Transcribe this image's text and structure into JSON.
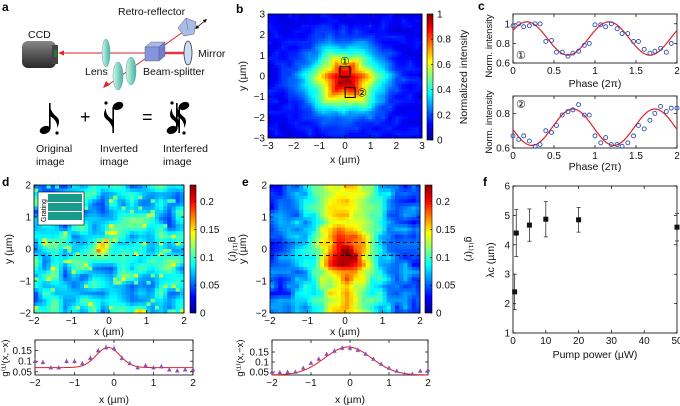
{
  "panel_labels": {
    "a": "a",
    "b": "b",
    "c": "c",
    "d": "d",
    "e": "e",
    "f": "f"
  },
  "panel_a": {
    "ccd": "CCD",
    "retro_reflector": "Retro-reflector",
    "mirror": "Mirror",
    "lens": "Lens",
    "beam_splitter": "Beam-splitter",
    "plus": "+",
    "equals": "=",
    "original": [
      "Original",
      "image"
    ],
    "inverted": [
      "Inverted",
      "image"
    ],
    "interfered": [
      "Interfered",
      "image"
    ],
    "colors": {
      "beam": "#e0202a",
      "lens": "#7fd0c0",
      "splitter": "#7f8fd8",
      "ccd": "#555555"
    }
  },
  "chart_data": [
    {
      "id": "b",
      "type": "heatmap",
      "xlabel": "x (µm)",
      "ylabel": "y (µm)",
      "xlim": [
        -3,
        3
      ],
      "ylim": [
        -3,
        3
      ],
      "xticks": [
        -3,
        -2,
        -1,
        0,
        1,
        2,
        3
      ],
      "yticks": [
        -3,
        -2,
        -1,
        0,
        1,
        2,
        3
      ],
      "colorbar": {
        "label": "Normalized intensity",
        "range": [
          0,
          1
        ],
        "ticks": [
          0,
          0.2,
          0.4,
          0.6,
          0.8,
          1
        ],
        "colormap": "jet"
      },
      "markers": [
        {
          "label": "①",
          "x": 0,
          "y": 0.2
        },
        {
          "label": "②",
          "x": 0.2,
          "y": -0.8
        }
      ]
    },
    {
      "id": "c1",
      "type": "scatter",
      "xlabel": "Phase (2π)",
      "ylabel": "Norm. intensity",
      "tag": "①",
      "xlim": [
        0,
        2
      ],
      "ylim": [
        0.6,
        1.1
      ],
      "xticks": [
        0,
        0.5,
        1,
        1.5,
        2
      ],
      "yticks": [
        0.6,
        0.8,
        1
      ],
      "x": [
        0,
        0.07,
        0.13,
        0.2,
        0.27,
        0.33,
        0.4,
        0.47,
        0.53,
        0.6,
        0.67,
        0.73,
        0.8,
        0.87,
        0.93,
        1.0,
        1.07,
        1.13,
        1.2,
        1.27,
        1.33,
        1.4,
        1.47,
        1.53,
        1.6,
        1.67,
        1.73,
        1.8,
        1.87,
        1.93
      ],
      "y": [
        0.98,
        1.0,
        0.97,
        0.98,
        1.0,
        1.0,
        0.82,
        0.83,
        0.71,
        0.71,
        0.67,
        0.7,
        0.72,
        0.78,
        0.8,
        0.99,
        0.99,
        0.97,
        1.0,
        0.95,
        0.9,
        0.9,
        0.82,
        0.82,
        0.74,
        0.7,
        0.72,
        0.75,
        0.71,
        0.8
      ],
      "fit": {
        "type": "cosine",
        "offset": 0.85,
        "amplitude": 0.17,
        "phase": 0.17
      },
      "colors": {
        "points": "#3050b0",
        "fit": "#e0202a"
      }
    },
    {
      "id": "c2",
      "type": "scatter",
      "xlabel": "Phase (2π)",
      "ylabel": "Norm. intensity",
      "tag": "②",
      "xlim": [
        0,
        2
      ],
      "ylim": [
        0.6,
        0.9
      ],
      "xticks": [
        0,
        0.5,
        1,
        1.5,
        2
      ],
      "yticks": [
        0.6,
        0.8
      ],
      "x": [
        0,
        0.07,
        0.13,
        0.2,
        0.27,
        0.33,
        0.4,
        0.47,
        0.53,
        0.6,
        0.67,
        0.73,
        0.8,
        0.87,
        0.93,
        1.0,
        1.07,
        1.13,
        1.2,
        1.27,
        1.33,
        1.4,
        1.47,
        1.53,
        1.6,
        1.67,
        1.73,
        1.8,
        1.87,
        1.93,
        2.0
      ],
      "y": [
        0.67,
        0.65,
        0.67,
        0.64,
        0.61,
        0.62,
        0.7,
        0.69,
        0.73,
        0.79,
        0.81,
        0.82,
        0.85,
        0.79,
        0.79,
        0.67,
        0.63,
        0.66,
        0.62,
        0.62,
        0.61,
        0.63,
        0.67,
        0.73,
        0.71,
        0.76,
        0.8,
        0.84,
        0.81,
        0.83,
        0.83
      ],
      "fit": {
        "type": "cosine",
        "offset": 0.72,
        "amplitude": 0.105,
        "phase": 0.73
      },
      "colors": {
        "points": "#3050b0",
        "fit": "#e0202a"
      }
    },
    {
      "id": "d",
      "type": "heatmap",
      "xlabel": "x (µm)",
      "ylabel": "y (µm)",
      "xlim": [
        -2,
        2
      ],
      "ylim": [
        -2,
        2
      ],
      "xticks": [
        -2,
        -1,
        0,
        1,
        2
      ],
      "yticks": [
        -2,
        -1,
        0,
        1,
        2
      ],
      "colorbar": {
        "label": "g⁽¹⁾(r)",
        "range": [
          0,
          0.23
        ],
        "ticks": [
          0,
          0.05,
          0.1,
          0.15,
          0.2
        ],
        "colormap": "jet"
      },
      "inset": "Grating",
      "dashed_lines_y": [
        0.2,
        -0.2
      ]
    },
    {
      "id": "d_profile",
      "type": "scatter",
      "xlabel": "x (µm)",
      "ylabel": "g⁽¹⁾(x,−x)",
      "xlim": [
        -2,
        2
      ],
      "ylim": [
        0.035,
        0.2
      ],
      "xticks": [
        -2,
        -1,
        0,
        1,
        2
      ],
      "yticks": [
        0.05,
        0.1,
        0.15
      ],
      "x": [
        -2,
        -1.8,
        -1.6,
        -1.4,
        -1.2,
        -1.0,
        -0.8,
        -0.6,
        -0.4,
        -0.2,
        0,
        0.2,
        0.4,
        0.6,
        0.8,
        1.0,
        1.2,
        1.4,
        1.6,
        1.8,
        2.0
      ],
      "y": [
        0.1,
        0.095,
        0.07,
        0.07,
        0.1,
        0.1,
        0.09,
        0.115,
        0.15,
        0.165,
        0.16,
        0.115,
        0.09,
        0.07,
        0.08,
        0.07,
        0.075,
        0.06,
        0.055,
        0.06,
        0.06
      ],
      "err": [
        0.01,
        0.01,
        0.008,
        0.008,
        0.012,
        0.012,
        0.01,
        0.012,
        0.012,
        0.013,
        0.015,
        0.012,
        0.01,
        0.008,
        0.01,
        0.008,
        0.008,
        0.008,
        0.008,
        0.008,
        0.008
      ],
      "fit": {
        "type": "gaussian",
        "offset": 0.07,
        "amplitude": 0.095,
        "center": -0.15,
        "sigma": 0.3
      },
      "colors": {
        "points": "#9050b0",
        "fit": "#e0202a"
      }
    },
    {
      "id": "e",
      "type": "heatmap",
      "xlabel": "x (µm)",
      "ylabel": "y (µm)",
      "xlim": [
        -2,
        2
      ],
      "ylim": [
        -2,
        2
      ],
      "xticks": [
        -2,
        -1,
        0,
        1,
        2
      ],
      "yticks": [
        -2,
        -1,
        0,
        1,
        2
      ],
      "colorbar": {
        "label": "g⁽¹⁾(r)",
        "range": [
          0,
          0.23
        ],
        "ticks": [
          0,
          0.05,
          0.1,
          0.15,
          0.2
        ],
        "colormap": "jet"
      },
      "dashed_lines_y": [
        0.2,
        -0.2
      ]
    },
    {
      "id": "e_profile",
      "type": "scatter",
      "xlabel": "x (µm)",
      "ylabel": "g⁽¹⁾(x,−x)",
      "xlim": [
        -2,
        2
      ],
      "ylim": [
        0.035,
        0.21
      ],
      "xticks": [
        -2,
        -1,
        0,
        1,
        2
      ],
      "yticks": [
        0.05,
        0.1,
        0.15
      ],
      "x": [
        -2,
        -1.8,
        -1.6,
        -1.4,
        -1.2,
        -1.0,
        -0.8,
        -0.6,
        -0.4,
        -0.2,
        0,
        0.2,
        0.4,
        0.6,
        0.8,
        1.0,
        1.2,
        1.4,
        1.6,
        1.8,
        2.0
      ],
      "y": [
        0.05,
        0.048,
        0.05,
        0.05,
        0.07,
        0.095,
        0.115,
        0.14,
        0.155,
        0.17,
        0.17,
        0.16,
        0.14,
        0.115,
        0.09,
        0.07,
        0.055,
        0.04,
        0.04,
        0.055,
        0.06
      ],
      "err": [
        0.005,
        0.005,
        0.005,
        0.005,
        0.006,
        0.007,
        0.008,
        0.01,
        0.012,
        0.013,
        0.015,
        0.012,
        0.01,
        0.008,
        0.006,
        0.006,
        0.005,
        0.005,
        0.005,
        0.005,
        0.005
      ],
      "fit": {
        "type": "gaussian",
        "offset": 0.035,
        "amplitude": 0.14,
        "center": -0.05,
        "sigma": 0.6
      },
      "colors": {
        "points": "#9050b0",
        "fit": "#e0202a"
      }
    },
    {
      "id": "f",
      "type": "scatter",
      "xlabel": "Pump power (µW)",
      "ylabel": "λc (µm)",
      "xlim": [
        0,
        50
      ],
      "ylim": [
        1,
        6
      ],
      "xticks": [
        0,
        10,
        20,
        30,
        40,
        50
      ],
      "yticks": [
        1,
        2,
        3,
        4,
        5,
        6
      ],
      "x": [
        0.5,
        1,
        5,
        10,
        20,
        50
      ],
      "y": [
        2.4,
        4.4,
        4.67,
        4.87,
        4.85,
        4.6
      ],
      "err": [
        0.6,
        0.8,
        0.55,
        0.6,
        0.42,
        0.47
      ],
      "colors": {
        "points": "#111111"
      }
    }
  ]
}
